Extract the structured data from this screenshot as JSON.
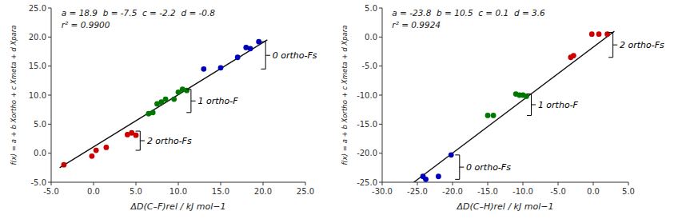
{
  "chart_data": [
    {
      "type": "scatter",
      "x_label": "ΔD(C–F)rel / kJ mol−1",
      "y_label": "f(x) = a + b Xortho + c Xmeta + d Xpara",
      "series": [
        {
          "type": "line",
          "color": "#111111",
          "x": [
            -4.0,
            20.5
          ],
          "values": [
            -2.5,
            19.5
          ]
        },
        {
          "type": "scatter",
          "color": "#cc0000",
          "x": [
            -3.5,
            -0.2,
            0.3,
            1.5,
            4.0,
            4.5,
            5.0
          ],
          "values": [
            -2.0,
            -0.5,
            0.5,
            1.0,
            3.2,
            3.5,
            3.1
          ]
        },
        {
          "type": "scatter",
          "color": "#007700",
          "x": [
            6.5,
            7.0,
            7.5,
            8.0,
            8.5,
            9.5,
            10.0,
            10.5,
            11.0
          ],
          "values": [
            6.8,
            7.0,
            8.5,
            8.8,
            9.3,
            9.3,
            10.5,
            11.0,
            10.8
          ]
        },
        {
          "type": "scatter",
          "color": "#0000bb",
          "x": [
            13.0,
            15.0,
            17.0,
            18.0,
            18.5,
            19.5
          ],
          "values": [
            14.5,
            14.7,
            16.5,
            18.2,
            18.0,
            19.2
          ]
        }
      ],
      "xlim": [
        -5.0,
        25.0
      ],
      "ylim": [
        -5.0,
        25.0
      ],
      "xticks": [
        {
          "value": -5.0,
          "label": "-5.0"
        },
        {
          "value": 0.0,
          "label": "0.0"
        },
        {
          "value": 5.0,
          "label": "5.0"
        },
        {
          "value": 10.0,
          "label": "10.0"
        },
        {
          "value": 15.0,
          "label": "15.0"
        },
        {
          "value": 20.0,
          "label": "20.0"
        },
        {
          "value": 25.0,
          "label": "25.0"
        }
      ],
      "yticks": [
        {
          "value": -5.0,
          "label": "-5.0"
        },
        {
          "value": 0.0,
          "label": "0.0"
        },
        {
          "value": 5.0,
          "label": "5.0"
        },
        {
          "value": 10.0,
          "label": "10.0"
        },
        {
          "value": 15.0,
          "label": "15.0"
        },
        {
          "value": 20.0,
          "label": "20.0"
        },
        {
          "value": 25.0,
          "label": "25.0"
        }
      ],
      "grid": false,
      "annotations": [
        "a = 18.9  b = -7.5  c = -2.2  d = -0.8",
        "r² = 0.9900"
      ],
      "brackets": [
        {
          "x": 20.3,
          "y1": 14.5,
          "y2": 19.2,
          "label": "0 ortho-Fs"
        },
        {
          "x": 11.5,
          "y1": 7.0,
          "y2": 11.0,
          "label": "1 ortho-F"
        },
        {
          "x": 5.5,
          "y1": 0.5,
          "y2": 3.8,
          "label": "2 ortho-Fs"
        }
      ]
    },
    {
      "type": "scatter",
      "x_label": "ΔD(C–H)rel / kJ mol−1",
      "y_label": "f(x) = a + b Xortho + c Xmeta + d Xpara",
      "series": [
        {
          "type": "line",
          "color": "#111111",
          "x": [
            -25.5,
            3.0
          ],
          "values": [
            -25.0,
            1.0
          ]
        },
        {
          "type": "scatter",
          "color": "#0000bb",
          "x": [
            -24.2,
            -23.8,
            -22.0,
            -20.2
          ],
          "values": [
            -24.0,
            -24.5,
            -24.0,
            -20.3
          ]
        },
        {
          "type": "scatter",
          "color": "#007700",
          "x": [
            -15.0,
            -14.2,
            -11.0,
            -10.5,
            -10.0,
            -9.5
          ],
          "values": [
            -13.5,
            -13.5,
            -9.8,
            -10.0,
            -10.0,
            -10.2
          ]
        },
        {
          "type": "scatter",
          "color": "#cc0000",
          "x": [
            -3.2,
            -2.8,
            -0.2,
            0.8,
            2.0
          ],
          "values": [
            -3.5,
            -3.2,
            0.5,
            0.5,
            0.5
          ]
        }
      ],
      "xlim": [
        -30.0,
        5.0
      ],
      "ylim": [
        -25.0,
        5.0
      ],
      "xticks": [
        {
          "value": -30.0,
          "label": "-30.0"
        },
        {
          "value": -25.0,
          "label": "-25.0"
        },
        {
          "value": -20.0,
          "label": "-20.0"
        },
        {
          "value": -15.0,
          "label": "-15.0"
        },
        {
          "value": -10.0,
          "label": "-10.0"
        },
        {
          "value": -5.0,
          "label": "-5.0"
        },
        {
          "value": 0.0,
          "label": "0.0"
        },
        {
          "value": 5.0,
          "label": "5.0"
        }
      ],
      "yticks": [
        {
          "value": -25.0,
          "label": "-25.0"
        },
        {
          "value": -20.0,
          "label": "-20.0"
        },
        {
          "value": -15.0,
          "label": "-15.0"
        },
        {
          "value": -10.0,
          "label": "-10.0"
        },
        {
          "value": -5.0,
          "label": "-5.0"
        },
        {
          "value": 0.0,
          "label": "0.0"
        },
        {
          "value": 5.0,
          "label": "5.0"
        }
      ],
      "grid": false,
      "annotations": [
        "a = -23.8  b = 10.5  c = 0.1  d = 3.6",
        "r² = 0.9924"
      ],
      "brackets": [
        {
          "x": -19.0,
          "y1": -24.5,
          "y2": -20.3,
          "label": "0 ortho-Fs"
        },
        {
          "x": -8.8,
          "y1": -13.5,
          "y2": -9.8,
          "label": "1 ortho-F"
        },
        {
          "x": 2.8,
          "y1": -3.5,
          "y2": 0.8,
          "label": "2 ortho-Fs"
        }
      ]
    }
  ]
}
